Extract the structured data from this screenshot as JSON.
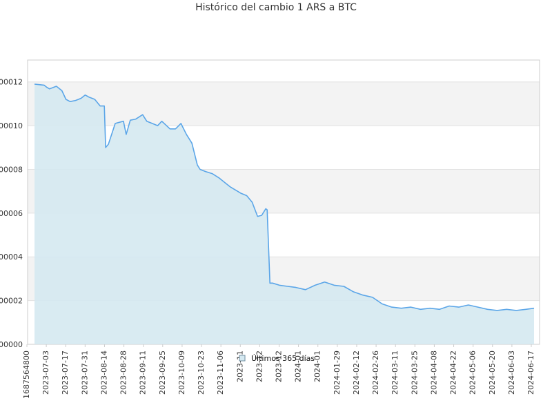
{
  "chart_data": {
    "type": "area",
    "title": "Histórico del cambio 1 ARS a BTC",
    "xlabel": "",
    "ylabel": "",
    "ylim": [
      0,
      1.3e-06
    ],
    "ytick_labels": [
      "000000",
      "000002",
      "000004",
      "000006",
      "000008",
      "000010",
      "000012"
    ],
    "ytick_values": [
      0,
      2e-07,
      4e-07,
      6e-07,
      8e-07,
      1e-06,
      1.2e-06
    ],
    "xtick_labels": [
      "1687564800",
      "2023-07-03",
      "2023-07-17",
      "2023-07-31",
      "2023-08-14",
      "2023-08-28",
      "2023-09-11",
      "2023-09-25",
      "2023-10-09",
      "2023-10-23",
      "2023-11-06",
      "2023-11",
      "2023-12",
      "2023-12",
      "2024-01",
      "2024-01",
      "2024-01-29",
      "2024-02-12",
      "2024-02-26",
      "2024-03-11",
      "2024-03-25",
      "2024-04-08",
      "2024-04-22",
      "2024-05-06",
      "2024-05-20",
      "2024-06-03",
      "2024-06-17"
    ],
    "legend": "bottom-center",
    "grid": "horizontal-bands",
    "colors": {
      "line": "#5aa5e8",
      "fill": "#d5e9f1",
      "band": "#f3f3f3",
      "axis": "#cccccc"
    },
    "series": [
      {
        "name": "Últimos 365 días",
        "x": [
          "2023-06-24",
          "2023-07-01",
          "2023-07-03",
          "2023-07-05",
          "2023-07-10",
          "2023-07-14",
          "2023-07-17",
          "2023-07-20",
          "2023-07-24",
          "2023-07-28",
          "2023-07-31",
          "2023-08-03",
          "2023-08-07",
          "2023-08-11",
          "2023-08-14",
          "2023-08-15",
          "2023-08-17",
          "2023-08-22",
          "2023-08-28",
          "2023-08-30",
          "2023-09-02",
          "2023-09-06",
          "2023-09-11",
          "2023-09-14",
          "2023-09-18",
          "2023-09-22",
          "2023-09-25",
          "2023-10-01",
          "2023-10-05",
          "2023-10-09",
          "2023-10-13",
          "2023-10-17",
          "2023-10-21",
          "2023-10-23",
          "2023-10-27",
          "2023-11-01",
          "2023-11-06",
          "2023-11-10",
          "2023-11-14",
          "2023-11-18",
          "2023-11-22",
          "2023-11-26",
          "2023-11-30",
          "2023-12-04",
          "2023-12-07",
          "2023-12-10",
          "2023-12-11",
          "2023-12-13",
          "2023-12-15",
          "2023-12-20",
          "2023-12-26",
          "2024-01-01",
          "2024-01-08",
          "2024-01-15",
          "2024-01-22",
          "2024-01-29",
          "2024-02-05",
          "2024-02-12",
          "2024-02-19",
          "2024-02-26",
          "2024-03-04",
          "2024-03-11",
          "2024-03-18",
          "2024-03-25",
          "2024-04-01",
          "2024-04-08",
          "2024-04-15",
          "2024-04-22",
          "2024-04-29",
          "2024-05-06",
          "2024-05-13",
          "2024-05-20",
          "2024-05-27",
          "2024-06-03",
          "2024-06-10",
          "2024-06-17",
          "2024-06-23"
        ],
        "values": [
          1.19e-06,
          1.185e-06,
          1.175e-06,
          1.168e-06,
          1.18e-06,
          1.16e-06,
          1.12e-06,
          1.11e-06,
          1.115e-06,
          1.125e-06,
          1.14e-06,
          1.13e-06,
          1.12e-06,
          1.09e-06,
          1.09e-06,
          9e-07,
          9.15e-07,
          1.01e-06,
          1.02e-06,
          9.6e-07,
          1.025e-06,
          1.03e-06,
          1.05e-06,
          1.02e-06,
          1.01e-06,
          1e-06,
          1.02e-06,
          9.85e-07,
          9.85e-07,
          1.01e-06,
          9.6e-07,
          9.2e-07,
          8.2e-07,
          8e-07,
          7.9e-07,
          7.8e-07,
          7.6e-07,
          7.4e-07,
          7.2e-07,
          7.05e-07,
          6.9e-07,
          6.8e-07,
          6.5e-07,
          5.85e-07,
          5.9e-07,
          6.2e-07,
          6.15e-07,
          2.8e-07,
          2.8e-07,
          2.7e-07,
          2.65e-07,
          2.6e-07,
          2.5e-07,
          2.7e-07,
          2.85e-07,
          2.7e-07,
          2.65e-07,
          2.4e-07,
          2.25e-07,
          2.15e-07,
          1.85e-07,
          1.7e-07,
          1.65e-07,
          1.7e-07,
          1.6e-07,
          1.65e-07,
          1.6e-07,
          1.75e-07,
          1.7e-07,
          1.8e-07,
          1.7e-07,
          1.6e-07,
          1.55e-07,
          1.6e-07,
          1.55e-07,
          1.6e-07,
          1.65e-07
        ]
      }
    ]
  }
}
